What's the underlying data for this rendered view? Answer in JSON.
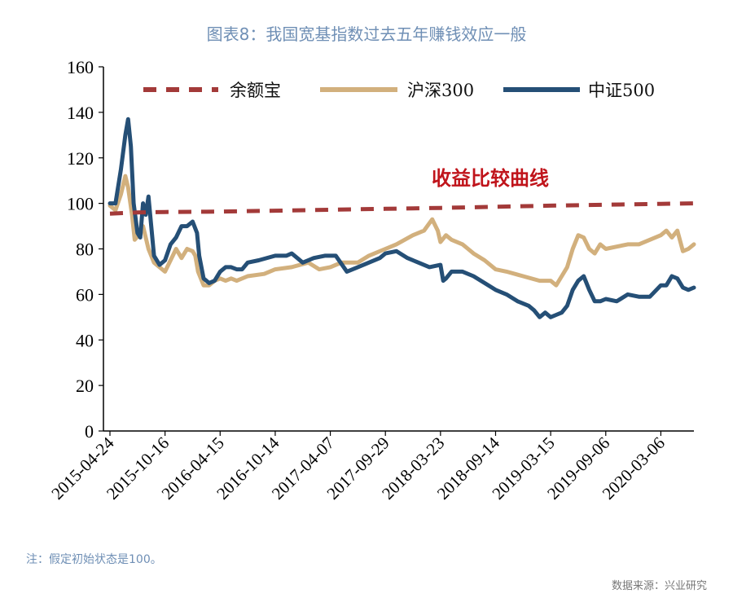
{
  "title": "图表8：我国宽基指数过去五年赚钱效应一般",
  "note": "注：假定初始状态是100。",
  "source": "数据来源：兴业研究",
  "colors": {
    "yuebao": "#a33a39",
    "hs300": "#d2b07d",
    "zz500": "#254f76"
  },
  "chart_data": {
    "type": "line",
    "title": "图表8：我国宽基指数过去五年赚钱效应一般",
    "xlabel": "",
    "ylabel": "",
    "ylim": [
      0,
      160
    ],
    "yticks": [
      0,
      20,
      40,
      60,
      80,
      100,
      120,
      140,
      160
    ],
    "xticks": [
      "2015-04-24",
      "2015-10-16",
      "2016-04-15",
      "2016-10-14",
      "2017-04-07",
      "2017-09-29",
      "2018-03-23",
      "2018-09-14",
      "2019-03-15",
      "2019-09-06",
      "2020-03-06"
    ],
    "x_range": [
      0,
      10.6
    ],
    "legend_position": "top",
    "annotation": "收益比较曲线",
    "series": [
      {
        "name": "余额宝",
        "style": "dashed",
        "color": "#a33a39",
        "points": [
          [
            0,
            95.5
          ],
          [
            0.5,
            96
          ],
          [
            1.0,
            96.2
          ],
          [
            2,
            96.4
          ],
          [
            3,
            96.8
          ],
          [
            4,
            97.2
          ],
          [
            5,
            97.6
          ],
          [
            6,
            98.0
          ],
          [
            7,
            98.5
          ],
          [
            8,
            99.0
          ],
          [
            9,
            99.4
          ],
          [
            10,
            99.8
          ],
          [
            10.6,
            100
          ]
        ]
      },
      {
        "name": "沪深300",
        "style": "solid",
        "color": "#d2b07d",
        "points": [
          [
            0,
            99
          ],
          [
            0.1,
            97
          ],
          [
            0.2,
            104
          ],
          [
            0.28,
            112
          ],
          [
            0.33,
            107
          ],
          [
            0.4,
            95
          ],
          [
            0.45,
            84
          ],
          [
            0.52,
            86
          ],
          [
            0.6,
            90
          ],
          [
            0.7,
            80
          ],
          [
            0.8,
            74
          ],
          [
            0.9,
            72
          ],
          [
            1.0,
            70
          ],
          [
            1.1,
            75
          ],
          [
            1.2,
            80
          ],
          [
            1.3,
            76
          ],
          [
            1.4,
            80
          ],
          [
            1.5,
            79
          ],
          [
            1.55,
            77
          ],
          [
            1.6,
            70
          ],
          [
            1.7,
            64
          ],
          [
            1.8,
            64
          ],
          [
            1.9,
            66
          ],
          [
            2.0,
            67
          ],
          [
            2.1,
            66
          ],
          [
            2.2,
            67
          ],
          [
            2.3,
            66
          ],
          [
            2.5,
            68
          ],
          [
            2.8,
            69
          ],
          [
            3.0,
            71
          ],
          [
            3.3,
            72
          ],
          [
            3.6,
            74
          ],
          [
            3.8,
            71
          ],
          [
            4.0,
            72
          ],
          [
            4.2,
            74
          ],
          [
            4.5,
            74
          ],
          [
            4.7,
            77
          ],
          [
            5.0,
            80
          ],
          [
            5.2,
            82
          ],
          [
            5.5,
            86
          ],
          [
            5.7,
            88
          ],
          [
            5.85,
            93
          ],
          [
            5.95,
            88
          ],
          [
            6.0,
            83
          ],
          [
            6.1,
            86
          ],
          [
            6.2,
            84
          ],
          [
            6.4,
            82
          ],
          [
            6.5,
            80
          ],
          [
            6.6,
            78
          ],
          [
            6.8,
            75
          ],
          [
            7.0,
            71
          ],
          [
            7.2,
            70
          ],
          [
            7.5,
            68
          ],
          [
            7.8,
            66
          ],
          [
            8.0,
            66
          ],
          [
            8.1,
            64
          ],
          [
            8.2,
            68
          ],
          [
            8.3,
            72
          ],
          [
            8.4,
            80
          ],
          [
            8.5,
            86
          ],
          [
            8.6,
            85
          ],
          [
            8.7,
            80
          ],
          [
            8.8,
            78
          ],
          [
            8.9,
            82
          ],
          [
            9.0,
            80
          ],
          [
            9.2,
            81
          ],
          [
            9.4,
            82
          ],
          [
            9.6,
            82
          ],
          [
            9.8,
            84
          ],
          [
            10.0,
            86
          ],
          [
            10.1,
            88
          ],
          [
            10.2,
            85
          ],
          [
            10.3,
            88
          ],
          [
            10.4,
            79
          ],
          [
            10.5,
            80
          ],
          [
            10.6,
            82
          ]
        ]
      },
      {
        "name": "中证500",
        "style": "solid",
        "color": "#254f76",
        "points": [
          [
            0,
            100
          ],
          [
            0.1,
            100
          ],
          [
            0.2,
            115
          ],
          [
            0.28,
            130
          ],
          [
            0.33,
            137
          ],
          [
            0.38,
            125
          ],
          [
            0.43,
            100
          ],
          [
            0.5,
            87
          ],
          [
            0.55,
            85
          ],
          [
            0.6,
            100
          ],
          [
            0.65,
            95
          ],
          [
            0.7,
            103
          ],
          [
            0.75,
            90
          ],
          [
            0.8,
            77
          ],
          [
            0.9,
            73
          ],
          [
            1.0,
            75
          ],
          [
            1.1,
            82
          ],
          [
            1.2,
            85
          ],
          [
            1.3,
            90
          ],
          [
            1.4,
            90
          ],
          [
            1.5,
            92
          ],
          [
            1.58,
            87
          ],
          [
            1.62,
            77
          ],
          [
            1.7,
            67
          ],
          [
            1.8,
            65
          ],
          [
            1.9,
            66
          ],
          [
            2.0,
            70
          ],
          [
            2.1,
            72
          ],
          [
            2.2,
            72
          ],
          [
            2.3,
            71
          ],
          [
            2.4,
            71
          ],
          [
            2.5,
            74
          ],
          [
            2.7,
            75
          ],
          [
            3.0,
            77
          ],
          [
            3.2,
            77
          ],
          [
            3.3,
            78
          ],
          [
            3.4,
            76
          ],
          [
            3.5,
            74
          ],
          [
            3.7,
            76
          ],
          [
            3.9,
            77
          ],
          [
            4.1,
            77
          ],
          [
            4.3,
            70
          ],
          [
            4.5,
            72
          ],
          [
            4.7,
            74
          ],
          [
            4.9,
            76
          ],
          [
            5.0,
            78
          ],
          [
            5.2,
            79
          ],
          [
            5.4,
            76
          ],
          [
            5.6,
            74
          ],
          [
            5.8,
            72
          ],
          [
            6.0,
            73
          ],
          [
            6.05,
            66
          ],
          [
            6.1,
            67
          ],
          [
            6.2,
            70
          ],
          [
            6.4,
            70
          ],
          [
            6.6,
            68
          ],
          [
            6.8,
            65
          ],
          [
            7.0,
            62
          ],
          [
            7.2,
            60
          ],
          [
            7.4,
            57
          ],
          [
            7.6,
            55
          ],
          [
            7.7,
            53
          ],
          [
            7.8,
            50
          ],
          [
            7.9,
            52
          ],
          [
            8.0,
            50
          ],
          [
            8.1,
            51
          ],
          [
            8.2,
            52
          ],
          [
            8.3,
            55
          ],
          [
            8.4,
            62
          ],
          [
            8.5,
            66
          ],
          [
            8.6,
            68
          ],
          [
            8.7,
            62
          ],
          [
            8.8,
            57
          ],
          [
            8.9,
            57
          ],
          [
            9.0,
            58
          ],
          [
            9.2,
            57
          ],
          [
            9.4,
            60
          ],
          [
            9.6,
            59
          ],
          [
            9.8,
            59
          ],
          [
            10.0,
            64
          ],
          [
            10.1,
            64
          ],
          [
            10.2,
            68
          ],
          [
            10.3,
            67
          ],
          [
            10.4,
            63
          ],
          [
            10.5,
            62
          ],
          [
            10.6,
            63
          ]
        ]
      }
    ]
  }
}
